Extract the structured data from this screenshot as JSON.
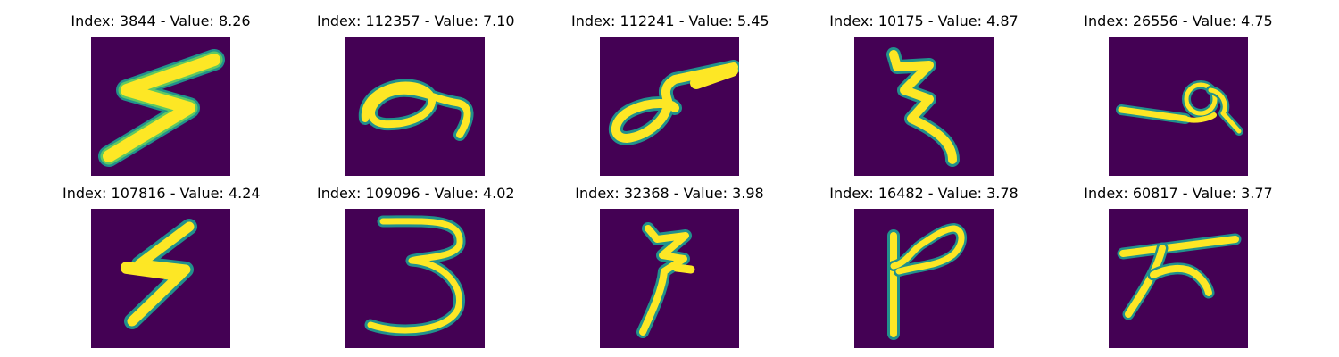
{
  "figure": {
    "background": "#ffffff",
    "colormap": "viridis",
    "panels": [
      {
        "title": "Index: 3844 - Value: 8.26",
        "glyph": "zigzag-s"
      },
      {
        "title": "Index: 112357 - Value: 7.10",
        "glyph": "loop-hook"
      },
      {
        "title": "Index: 112241 - Value: 5.45",
        "glyph": "loop-flag"
      },
      {
        "title": "Index: 10175 - Value: 4.87",
        "glyph": "squiggle-vertical"
      },
      {
        "title": "Index: 26556 - Value: 4.75",
        "glyph": "curl-line"
      },
      {
        "title": "Index: 107816 - Value: 4.24",
        "glyph": "lightning"
      },
      {
        "title": "Index: 109096 - Value: 4.02",
        "glyph": "three"
      },
      {
        "title": "Index: 32368 - Value: 3.98",
        "glyph": "squiggle-tail"
      },
      {
        "title": "Index: 16482 - Value: 3.78",
        "glyph": "hook-stem"
      },
      {
        "title": "Index: 60817 - Value: 3.77",
        "glyph": "bar-strokes"
      }
    ],
    "colors": {
      "background": "#440154",
      "edge": "#21918c",
      "mid": "#5ec962",
      "ink": "#fde725"
    }
  }
}
